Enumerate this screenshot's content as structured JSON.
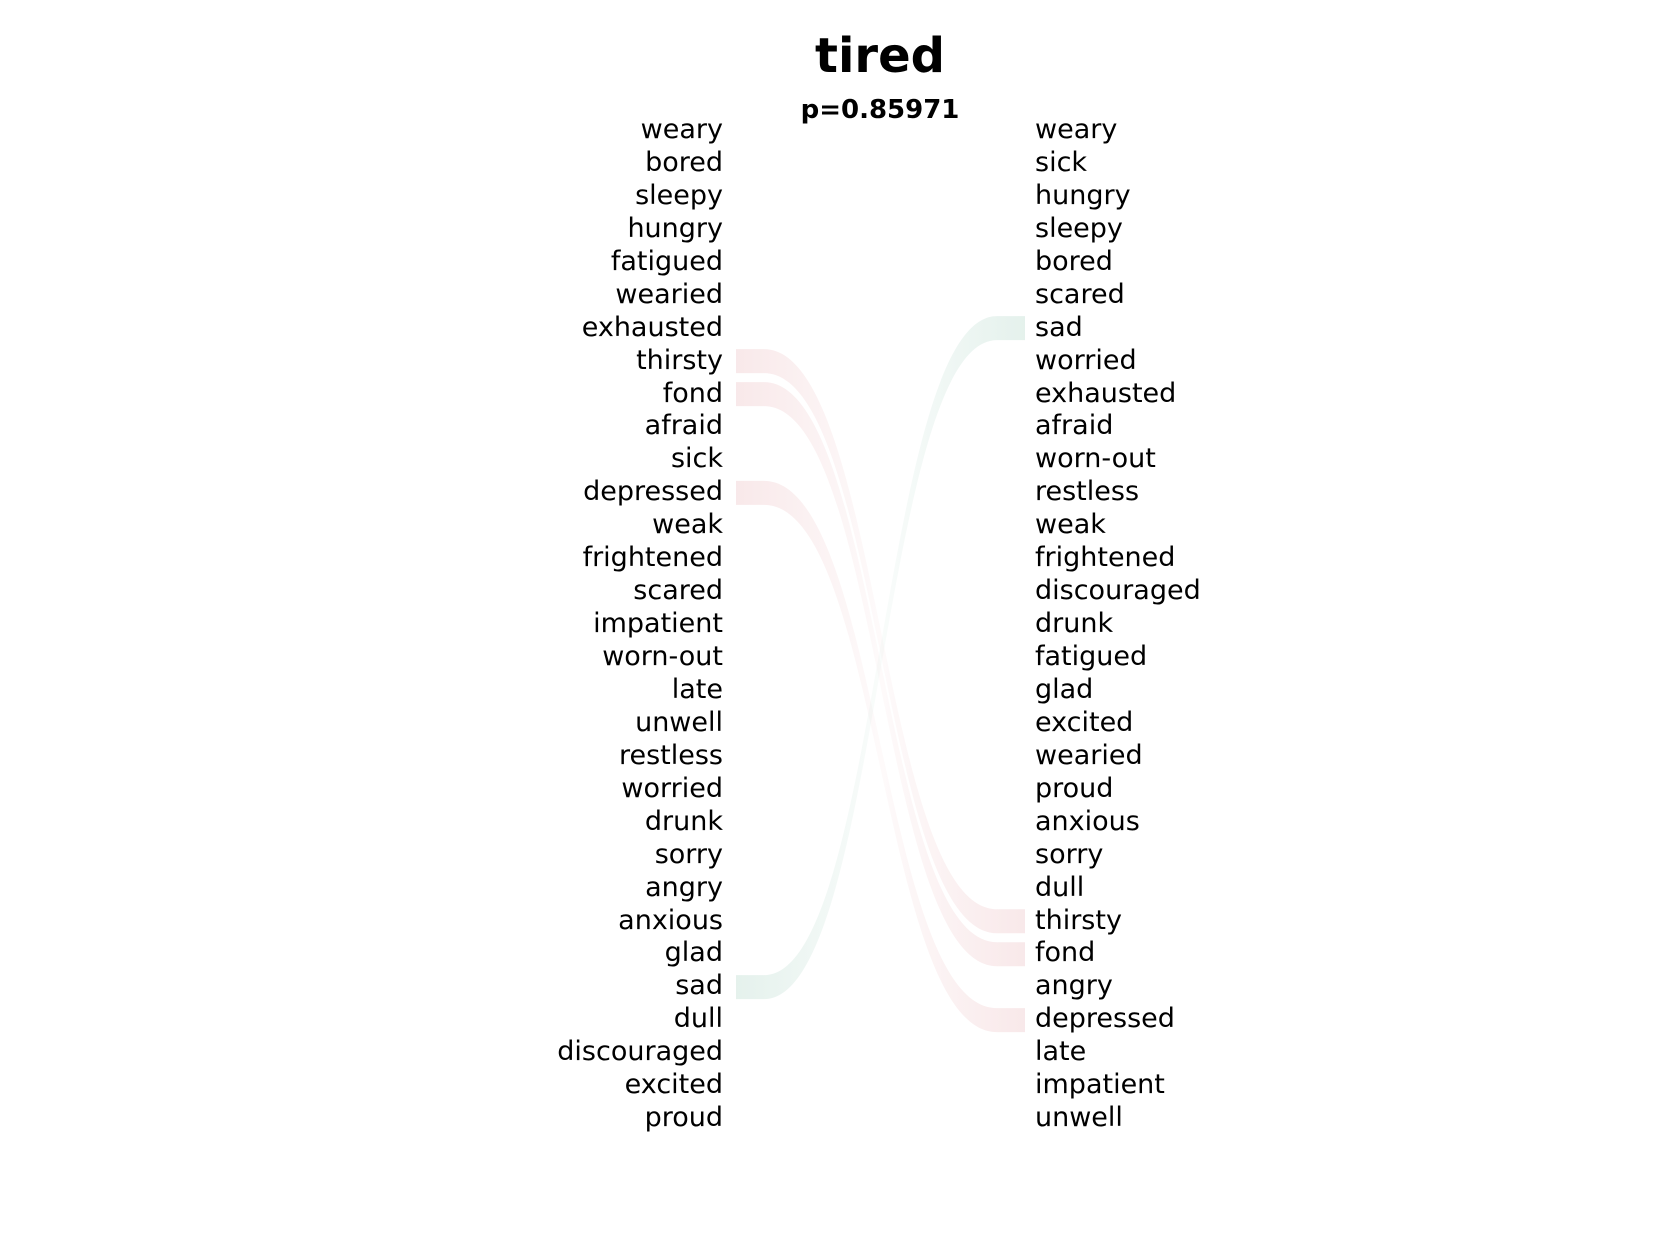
{
  "title": "tired",
  "subtitle": "p=0.85971",
  "left_words": [
    "weary",
    "bored",
    "sleepy",
    "hungry",
    "fatigued",
    "wearied",
    "exhausted",
    "thirsty",
    "fond",
    "afraid",
    "sick",
    "depressed",
    "weak",
    "frightened",
    "scared",
    "impatient",
    "worn-out",
    "late",
    "unwell",
    "restless",
    "worried",
    "drunk",
    "sorry",
    "angry",
    "anxious",
    "glad",
    "sad",
    "dull",
    "discouraged",
    "excited",
    "proud"
  ],
  "right_words": [
    "weary",
    "sick",
    "hungry",
    "sleepy",
    "bored",
    "scared",
    "sad",
    "worried",
    "exhausted",
    "afraid",
    "worn-out",
    "restless",
    "weak",
    "frightened",
    "discouraged",
    "drunk",
    "fatigued",
    "glad",
    "excited",
    "wearied",
    "proud",
    "anxious",
    "sorry",
    "dull",
    "thirsty",
    "fond",
    "angry",
    "depressed",
    "late",
    "impatient",
    "unwell"
  ],
  "highlighted_links": [
    {
      "word": "thirsty",
      "color": "#f3d6d8"
    },
    {
      "word": "fond",
      "color": "#f3d6d8"
    },
    {
      "word": "depressed",
      "color": "#f3d6d8"
    },
    {
      "word": "sad",
      "color": "#cfe6dd"
    }
  ]
}
